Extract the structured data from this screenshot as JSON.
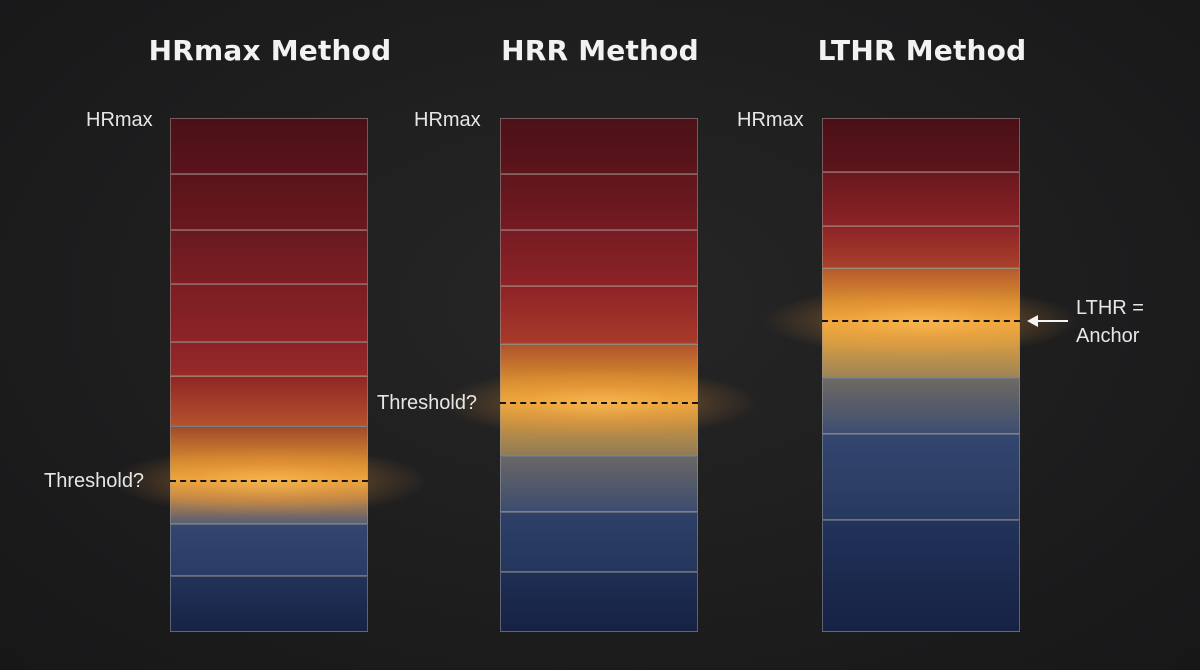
{
  "methods": [
    {
      "title": "HRmax Method",
      "top_label": "HRmax",
      "threshold_label": "Threshold?"
    },
    {
      "title": "HRR Method",
      "top_label": "HRmax",
      "threshold_label": "Threshold?"
    },
    {
      "title": "LTHR Method",
      "top_label": "HRmax",
      "anchor_label_line1": "LTHR =",
      "anchor_label_line2": "Anchor"
    }
  ],
  "colors": {
    "dark_red": "#4e1118",
    "red": "#8f2327",
    "orange": "#c8702c",
    "amber": "#e7a03e",
    "blue": "#2b3d66",
    "navy": "#172346",
    "background": "#1f1f20"
  }
}
